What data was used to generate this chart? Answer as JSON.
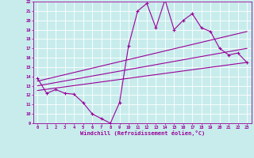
{
  "xlabel": "Windchill (Refroidissement éolien,°C)",
  "bg_color": "#c8ecec",
  "grid_color": "#ffffff",
  "line_color": "#990099",
  "xlim": [
    -0.5,
    23.5
  ],
  "ylim": [
    9,
    22
  ],
  "xticks": [
    0,
    1,
    2,
    3,
    4,
    5,
    6,
    7,
    8,
    9,
    10,
    11,
    12,
    13,
    14,
    15,
    16,
    17,
    18,
    19,
    20,
    21,
    22,
    23
  ],
  "yticks": [
    9,
    10,
    11,
    12,
    13,
    14,
    15,
    16,
    17,
    18,
    19,
    20,
    21,
    22
  ],
  "main_series_x": [
    0,
    1,
    2,
    3,
    4,
    5,
    6,
    7,
    8,
    9,
    10,
    11,
    12,
    13,
    14,
    15,
    16,
    17,
    18,
    19,
    20,
    21,
    22,
    23
  ],
  "main_series_y": [
    13.8,
    12.2,
    12.6,
    12.2,
    12.1,
    11.2,
    10.0,
    9.5,
    9.0,
    11.2,
    17.3,
    21.0,
    21.8,
    19.2,
    22.2,
    19.0,
    20.0,
    20.7,
    19.2,
    18.8,
    17.0,
    16.3,
    16.5,
    15.5
  ],
  "line1_x": [
    0,
    23
  ],
  "line1_y": [
    13.5,
    18.8
  ],
  "line2_x": [
    0,
    23
  ],
  "line2_y": [
    13.0,
    17.0
  ],
  "line3_x": [
    0,
    23
  ],
  "line3_y": [
    12.5,
    15.5
  ]
}
